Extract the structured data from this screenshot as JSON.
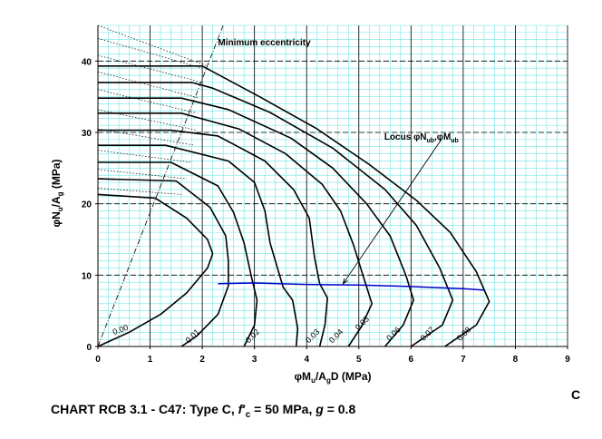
{
  "chart_data": {
    "type": "line",
    "title": "CHART RCB 3.1 - C47: Type C, f′c = 50 MPa, g = 0.8",
    "title_parts": {
      "prefix": "CHART RCB 3.1 - C47: Type C, ",
      "f": "f",
      "prime": "′",
      "c_sub": "c",
      "mid": " = 50 MPa, ",
      "g": "g",
      "suffix": " = 0.8"
    },
    "corner_label": "C",
    "xlabel": "φMu/AgD (MPa)",
    "xlabel_parts": {
      "a": "φM",
      "b": "u",
      "c": "/A",
      "d": "g",
      "e": "D (MPa)"
    },
    "ylabel": "φNu/Ag (MPa)",
    "ylabel_parts": {
      "a": "φN",
      "b": "u",
      "c": "/A",
      "d": "g",
      "e": " (MPa)"
    },
    "xlim": [
      0,
      9
    ],
    "ylim": [
      0,
      45
    ],
    "x_ticks": [
      0,
      1,
      2,
      3,
      4,
      5,
      6,
      7,
      8,
      9
    ],
    "y_ticks": [
      0,
      10,
      20,
      30,
      40
    ],
    "x_tick_labels": [
      "0",
      "1",
      "2",
      "3",
      "4",
      "5",
      "6",
      "7",
      "8",
      "9"
    ],
    "y_tick_labels": [
      "0",
      "10",
      "20",
      "30",
      "40"
    ],
    "grid": true,
    "colors": {
      "grid_minor": "#6fe3e3",
      "grid_major": "#000000",
      "curves": "#000000",
      "locus": "#0000cc"
    },
    "annotations": [
      {
        "text": "Minimum eccentricity",
        "x": 2.3,
        "y": 42.2
      },
      {
        "text": "Locus φNub,φMub",
        "x": 6.2,
        "y": 29.0
      }
    ],
    "series": [
      {
        "name": "0.00",
        "points": [
          [
            0,
            0
          ],
          [
            0.6,
            2
          ],
          [
            1.2,
            4.5
          ],
          [
            1.7,
            7.5
          ],
          [
            2.1,
            11
          ],
          [
            2.2,
            13
          ],
          [
            2.1,
            15
          ],
          [
            1.7,
            18
          ],
          [
            1.1,
            20.8
          ],
          [
            0,
            21.3
          ]
        ]
      },
      {
        "name": "0.01",
        "points": [
          [
            1.6,
            0
          ],
          [
            1.9,
            1.5
          ],
          [
            2.3,
            4.5
          ],
          [
            2.5,
            8.5
          ],
          [
            2.5,
            12
          ],
          [
            2.45,
            15.5
          ],
          [
            2.15,
            19.5
          ],
          [
            1.5,
            23.2
          ],
          [
            0,
            23.5
          ]
        ]
      },
      {
        "name": "0.02",
        "points": [
          [
            2.8,
            0
          ],
          [
            3.0,
            3.0
          ],
          [
            3.05,
            6.5
          ],
          [
            2.95,
            9.5
          ],
          [
            2.8,
            14.5
          ],
          [
            2.6,
            18.8
          ],
          [
            2.3,
            22.5
          ],
          [
            1.4,
            25.8
          ],
          [
            0,
            25.8
          ]
        ]
      },
      {
        "name": "0.03",
        "points": [
          [
            3.8,
            0
          ],
          [
            3.83,
            2.5
          ],
          [
            3.73,
            6.5
          ],
          [
            3.55,
            8.3
          ],
          [
            3.3,
            14.5
          ],
          [
            3.2,
            19
          ],
          [
            3.0,
            23
          ],
          [
            2.5,
            26
          ],
          [
            1.3,
            28.2
          ],
          [
            0,
            28.2
          ]
        ]
      },
      {
        "name": "0.04",
        "points": [
          [
            4.25,
            0
          ],
          [
            4.35,
            3.0
          ],
          [
            4.4,
            6.8
          ],
          [
            4.25,
            8.8
          ],
          [
            4.15,
            12.5
          ],
          [
            4.05,
            18
          ],
          [
            3.75,
            22
          ],
          [
            3.2,
            26
          ],
          [
            2.3,
            29.5
          ],
          [
            1.4,
            30.3
          ],
          [
            0,
            30.3
          ]
        ]
      },
      {
        "name": "0.05",
        "points": [
          [
            4.8,
            0
          ],
          [
            5.05,
            2.8
          ],
          [
            5.25,
            6.0
          ],
          [
            5.1,
            9.5
          ],
          [
            4.9,
            14.2
          ],
          [
            4.65,
            19
          ],
          [
            4.3,
            22.7
          ],
          [
            3.6,
            27
          ],
          [
            2.7,
            30.5
          ],
          [
            1.6,
            32.7
          ],
          [
            0,
            32.7
          ]
        ]
      },
      {
        "name": "0.06",
        "points": [
          [
            5.5,
            0
          ],
          [
            5.85,
            3.0
          ],
          [
            6.05,
            6.5
          ],
          [
            5.9,
            10
          ],
          [
            5.6,
            15.5
          ],
          [
            5.15,
            20
          ],
          [
            4.5,
            25
          ],
          [
            3.7,
            29.2
          ],
          [
            2.5,
            33.2
          ],
          [
            1.6,
            34.8
          ],
          [
            0,
            34.8
          ]
        ]
      },
      {
        "name": "0.07",
        "points": [
          [
            6.0,
            0
          ],
          [
            6.6,
            3.0
          ],
          [
            6.8,
            6.5
          ],
          [
            6.55,
            11
          ],
          [
            6.1,
            17
          ],
          [
            5.5,
            22
          ],
          [
            4.5,
            27.8
          ],
          [
            3.3,
            32.8
          ],
          [
            2.2,
            36.2
          ],
          [
            1.8,
            37.0
          ],
          [
            0,
            37.0
          ]
        ]
      },
      {
        "name": "0.08",
        "points": [
          [
            6.65,
            0
          ],
          [
            7.25,
            3.0
          ],
          [
            7.5,
            6.3
          ],
          [
            7.25,
            10.5
          ],
          [
            6.75,
            16
          ],
          [
            6.1,
            20.5
          ],
          [
            5.2,
            25.5
          ],
          [
            4.2,
            30.5
          ],
          [
            3.1,
            35
          ],
          [
            2.0,
            39.3
          ],
          [
            0,
            39.3
          ]
        ]
      }
    ],
    "series_label_positions": [
      [
        0.45,
        2.0
      ],
      [
        1.85,
        1.2
      ],
      [
        3.0,
        1.2
      ],
      [
        4.15,
        1.2
      ],
      [
        4.6,
        1.2
      ],
      [
        5.1,
        3.0
      ],
      [
        5.7,
        1.5
      ],
      [
        6.35,
        1.5
      ],
      [
        7.05,
        1.5
      ]
    ],
    "locus": {
      "name": "Locus φNub,φMub",
      "points": [
        [
          2.3,
          8.8
        ],
        [
          3.0,
          8.9
        ],
        [
          4.0,
          8.7
        ],
        [
          5.0,
          8.6
        ],
        [
          6.0,
          8.4
        ],
        [
          7.0,
          8.1
        ],
        [
          7.4,
          7.9
        ]
      ]
    },
    "locus_pointer": {
      "from": [
        6.6,
        29.2
      ],
      "to": [
        4.7,
        8.8
      ]
    },
    "min_eccentricity": {
      "from": [
        0,
        0
      ],
      "to": [
        2.4,
        45
      ]
    },
    "dotted_lines": [
      {
        "from": [
          0,
          45
        ],
        "to": [
          2.1,
          39.3
        ]
      },
      {
        "from": [
          0,
          43.2
        ],
        "to": [
          2.0,
          39.0
        ]
      },
      {
        "from": [
          0,
          40.8
        ],
        "to": [
          2.0,
          37.0
        ]
      },
      {
        "from": [
          0,
          38.5
        ],
        "to": [
          1.95,
          34.8
        ]
      },
      {
        "from": [
          0,
          36.0
        ],
        "to": [
          1.9,
          32.7
        ]
      },
      {
        "from": [
          0,
          33.2
        ],
        "to": [
          1.9,
          30.3
        ]
      },
      {
        "from": [
          0,
          30.5
        ],
        "to": [
          1.85,
          28.2
        ]
      },
      {
        "from": [
          0,
          27.5
        ],
        "to": [
          1.8,
          25.8
        ]
      },
      {
        "from": [
          0,
          24.8
        ],
        "to": [
          1.7,
          23.5
        ]
      },
      {
        "from": [
          0,
          22.2
        ],
        "to": [
          1.6,
          21.3
        ]
      }
    ]
  }
}
